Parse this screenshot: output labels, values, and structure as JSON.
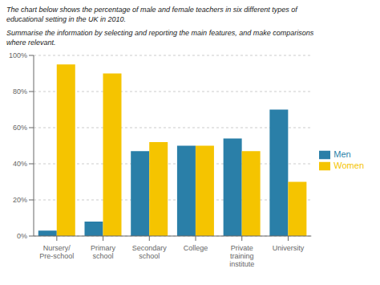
{
  "chart_data": {
    "type": "bar",
    "title": "The chart below shows the percentage of male and female teachers in six different types of\neducational setting in the UK in 2010.",
    "subtitle": "Summarise the information by selecting and reporting the main features, and make comparisons\nwhere relevant.",
    "categories": [
      "Nursery/Pre-school",
      "Primary school",
      "Secondary school",
      "College",
      "Private training institute",
      "University"
    ],
    "series": [
      {
        "name": "Men",
        "color": "#2a7fa8",
        "values": [
          3,
          8,
          47,
          50,
          54,
          70
        ]
      },
      {
        "name": "Women",
        "color": "#f5c400",
        "values": [
          95,
          90,
          52,
          50,
          47,
          30
        ]
      }
    ],
    "ylim": [
      0,
      100
    ],
    "yticks": [
      {
        "value": 0,
        "label": "0%"
      },
      {
        "value": 20,
        "label": "20%"
      },
      {
        "value": 40,
        "label": "40%"
      },
      {
        "value": 60,
        "label": "60%"
      },
      {
        "value": 80,
        "label": "80%"
      },
      {
        "value": 100,
        "label": "100%"
      }
    ],
    "grid": true,
    "legend": "right"
  }
}
